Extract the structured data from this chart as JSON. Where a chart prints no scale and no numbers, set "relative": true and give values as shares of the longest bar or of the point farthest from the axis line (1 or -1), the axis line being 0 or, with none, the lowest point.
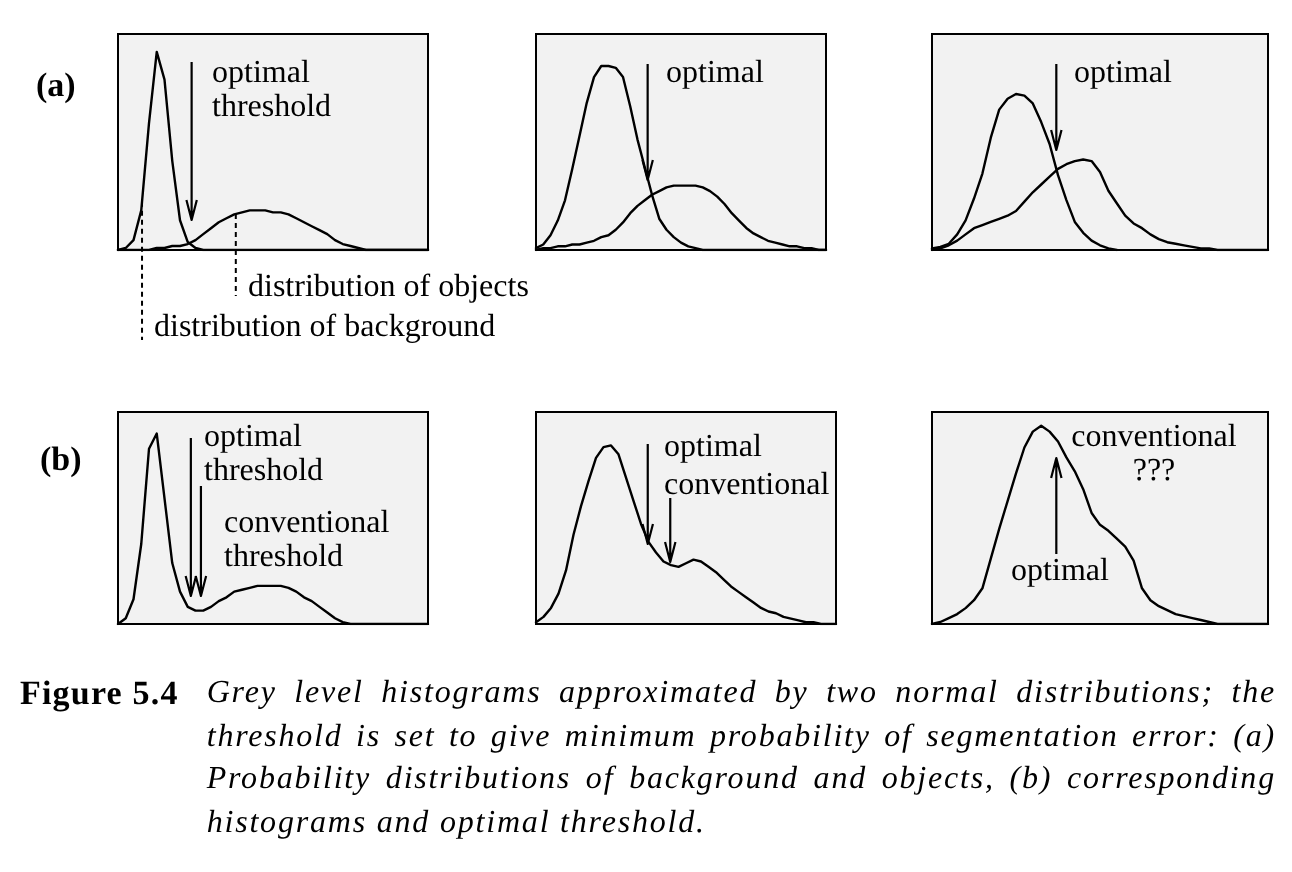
{
  "chart_data": [
    {
      "type": "line",
      "title": "(a)",
      "relative": true,
      "categories": [
        null,
        null,
        null,
        null,
        null,
        null,
        null,
        null,
        null,
        null,
        null,
        null,
        null,
        null,
        null,
        null,
        null,
        null,
        null,
        null,
        null,
        null,
        null,
        null,
        null,
        null,
        null,
        null,
        null,
        null,
        null,
        null,
        null,
        null,
        null,
        null,
        null,
        null,
        null,
        null,
        null
      ],
      "series": [
        {
          "name": "distribution of background",
          "color": "#000000",
          "values": [
            0,
            0.01,
            0.05,
            0.2,
            0.64,
            1,
            0.86,
            0.45,
            0.15,
            0.04,
            0.01,
            0,
            0,
            0,
            0,
            0,
            0,
            0,
            0,
            0,
            0,
            0,
            0,
            0,
            0,
            0,
            0,
            0,
            0,
            0,
            0,
            0,
            0,
            0,
            0,
            0,
            0,
            0,
            0,
            0,
            0
          ]
        },
        {
          "name": "distribution of objects",
          "color": "#000000",
          "values": [
            0,
            0,
            0,
            0,
            0,
            0.01,
            0.01,
            0.02,
            0.02,
            0.03,
            0.05,
            0.08,
            0.11,
            0.14,
            0.16,
            0.18,
            0.19,
            0.2,
            0.2,
            0.2,
            0.19,
            0.19,
            0.18,
            0.16,
            0.14,
            0.12,
            0.1,
            0.08,
            0.05,
            0.03,
            0.02,
            0.01,
            0,
            0,
            0,
            0,
            0,
            0,
            0,
            0,
            0
          ]
        }
      ],
      "annotations": [
        "optimal threshold"
      ]
    },
    {
      "type": "line",
      "relative": true,
      "categories": [
        null,
        null,
        null,
        null,
        null,
        null,
        null,
        null,
        null,
        null,
        null,
        null,
        null,
        null,
        null,
        null,
        null,
        null,
        null,
        null,
        null,
        null,
        null,
        null,
        null,
        null,
        null,
        null,
        null,
        null,
        null,
        null,
        null,
        null,
        null,
        null,
        null,
        null,
        null,
        null,
        null
      ],
      "series": [
        {
          "color": "#000000",
          "values": [
            0.01,
            0.03,
            0.08,
            0.16,
            0.27,
            0.44,
            0.62,
            0.8,
            0.94,
            1,
            1,
            0.99,
            0.94,
            0.78,
            0.6,
            0.45,
            0.3,
            0.17,
            0.11,
            0.07,
            0.04,
            0.02,
            0.01,
            0,
            0,
            0,
            0,
            0,
            0,
            0,
            0,
            0,
            0,
            0,
            0,
            0,
            0,
            0,
            0,
            0,
            0
          ]
        },
        {
          "color": "#000000",
          "values": [
            0,
            0.01,
            0.01,
            0.02,
            0.02,
            0.03,
            0.03,
            0.04,
            0.05,
            0.07,
            0.08,
            0.11,
            0.15,
            0.2,
            0.24,
            0.27,
            0.3,
            0.32,
            0.34,
            0.35,
            0.35,
            0.35,
            0.35,
            0.34,
            0.32,
            0.29,
            0.25,
            0.2,
            0.16,
            0.12,
            0.09,
            0.07,
            0.05,
            0.04,
            0.03,
            0.02,
            0.02,
            0.01,
            0.01,
            0,
            0
          ]
        }
      ],
      "annotations": [
        "optimal"
      ]
    },
    {
      "type": "line",
      "relative": true,
      "categories": [
        null,
        null,
        null,
        null,
        null,
        null,
        null,
        null,
        null,
        null,
        null,
        null,
        null,
        null,
        null,
        null,
        null,
        null,
        null,
        null,
        null,
        null,
        null,
        null,
        null,
        null,
        null,
        null,
        null,
        null,
        null,
        null,
        null,
        null,
        null,
        null,
        null,
        null,
        null,
        null,
        null
      ],
      "series": [
        {
          "color": "#000000",
          "values": [
            0.01,
            0.02,
            0.04,
            0.1,
            0.19,
            0.33,
            0.49,
            0.72,
            0.9,
            0.97,
            1,
            0.99,
            0.94,
            0.82,
            0.68,
            0.48,
            0.32,
            0.18,
            0.11,
            0.06,
            0.03,
            0.01,
            0,
            null,
            null,
            null,
            null,
            null,
            null,
            null,
            null,
            null,
            null,
            null,
            null,
            null,
            null,
            null,
            null,
            null,
            null
          ]
        },
        {
          "color": "#000000",
          "values": [
            0,
            0.01,
            0.03,
            0.06,
            0.1,
            0.14,
            0.16,
            0.18,
            0.2,
            0.22,
            0.25,
            0.31,
            0.37,
            0.42,
            0.47,
            0.52,
            0.55,
            0.57,
            0.58,
            0.57,
            0.5,
            0.38,
            0.3,
            0.22,
            0.17,
            0.14,
            0.1,
            0.07,
            0.05,
            0.04,
            0.03,
            0.02,
            0.01,
            0.01,
            0,
            0,
            0,
            0,
            0,
            0,
            0
          ]
        }
      ],
      "annotations": [
        "optimal"
      ]
    },
    {
      "type": "line",
      "title": "(b)",
      "relative": true,
      "categories": [
        null,
        null,
        null,
        null,
        null,
        null,
        null,
        null,
        null,
        null,
        null,
        null,
        null,
        null,
        null,
        null,
        null,
        null,
        null,
        null,
        null,
        null,
        null,
        null,
        null,
        null,
        null,
        null,
        null,
        null,
        null,
        null,
        null,
        null,
        null,
        null,
        null,
        null,
        null,
        null,
        null
      ],
      "series": [
        {
          "color": "#000000",
          "values": [
            0,
            0.03,
            0.13,
            0.42,
            0.92,
            1,
            0.66,
            0.32,
            0.17,
            0.09,
            0.07,
            0.07,
            0.09,
            0.12,
            0.14,
            0.17,
            0.18,
            0.19,
            0.2,
            0.2,
            0.2,
            0.2,
            0.19,
            0.17,
            0.14,
            0.12,
            0.09,
            0.06,
            0.03,
            0.01,
            0,
            0,
            0,
            0,
            0,
            0,
            0,
            0,
            0,
            0,
            0
          ]
        }
      ],
      "annotations": [
        "optimal threshold",
        "conventional threshold"
      ]
    },
    {
      "type": "line",
      "relative": true,
      "categories": [
        null,
        null,
        null,
        null,
        null,
        null,
        null,
        null,
        null,
        null,
        null,
        null,
        null,
        null,
        null,
        null,
        null,
        null,
        null,
        null,
        null,
        null,
        null,
        null,
        null,
        null,
        null,
        null,
        null,
        null,
        null,
        null,
        null,
        null,
        null,
        null,
        null,
        null,
        null,
        null,
        null
      ],
      "series": [
        {
          "color": "#000000",
          "values": [
            0.01,
            0.04,
            0.09,
            0.17,
            0.3,
            0.5,
            0.66,
            0.8,
            0.93,
            0.99,
            1,
            0.95,
            0.82,
            0.69,
            0.56,
            0.46,
            0.4,
            0.35,
            0.33,
            0.32,
            0.34,
            0.36,
            0.35,
            0.32,
            0.29,
            0.25,
            0.21,
            0.18,
            0.15,
            0.12,
            0.09,
            0.07,
            0.06,
            0.04,
            0.03,
            0.02,
            0.01,
            0.01,
            0,
            0,
            0
          ]
        }
      ],
      "annotations": [
        "optimal",
        "conventional"
      ]
    },
    {
      "type": "line",
      "relative": true,
      "categories": [
        null,
        null,
        null,
        null,
        null,
        null,
        null,
        null,
        null,
        null,
        null,
        null,
        null,
        null,
        null,
        null,
        null,
        null,
        null,
        null,
        null,
        null,
        null,
        null,
        null,
        null,
        null,
        null,
        null,
        null,
        null,
        null,
        null,
        null,
        null,
        null,
        null,
        null,
        null,
        null,
        null
      ],
      "series": [
        {
          "color": "#000000",
          "values": [
            0,
            0.01,
            0.03,
            0.05,
            0.08,
            0.12,
            0.18,
            0.33,
            0.48,
            0.62,
            0.76,
            0.89,
            0.97,
            1,
            0.97,
            0.92,
            0.84,
            0.77,
            0.68,
            0.56,
            0.5,
            0.47,
            0.43,
            0.39,
            0.32,
            0.18,
            0.12,
            0.09,
            0.07,
            0.05,
            0.04,
            0.03,
            0.02,
            0.01,
            0,
            0,
            0,
            0,
            0,
            0,
            0
          ]
        }
      ],
      "annotations": [
        "conventional ???",
        "optimal"
      ]
    },
    {
      "type": "other",
      "title": "Figure 5.4",
      "annotations": [
        "Grey level histograms approximated by two normal distributions; the threshold is set to give minimum probability of segmentation error: (a) Probability distributions of background and objects, (b) corresponding histograms and optimal threshold."
      ]
    }
  ]
}
